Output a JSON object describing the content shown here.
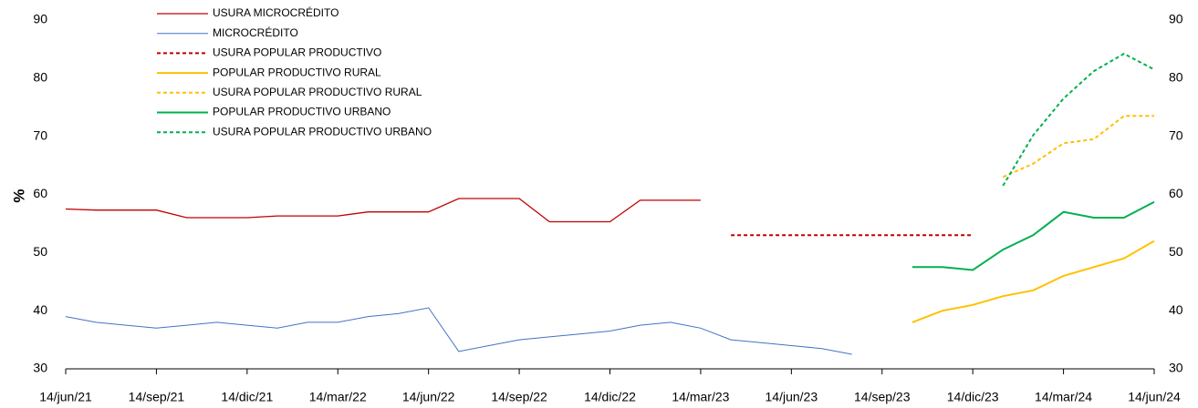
{
  "chart_data": {
    "type": "line",
    "ylabel": "%",
    "ylim": [
      30,
      90
    ],
    "yticks": [
      30,
      40,
      50,
      60,
      70,
      80,
      90
    ],
    "y2lim": [
      30,
      90
    ],
    "y2ticks": [
      30,
      40,
      50,
      60,
      70,
      80,
      90
    ],
    "legend": "top-left",
    "x": [
      "2021-06-14",
      "2021-07-14",
      "2021-08-14",
      "2021-09-14",
      "2021-10-14",
      "2021-11-14",
      "2021-12-14",
      "2022-01-14",
      "2022-02-14",
      "2022-03-14",
      "2022-04-14",
      "2022-05-14",
      "2022-06-14",
      "2022-07-14",
      "2022-08-14",
      "2022-09-14",
      "2022-10-14",
      "2022-11-14",
      "2022-12-14",
      "2023-01-14",
      "2023-02-14",
      "2023-03-14",
      "2023-04-14",
      "2023-05-14",
      "2023-06-14",
      "2023-07-14",
      "2023-08-14",
      "2023-09-14",
      "2023-10-14",
      "2023-11-14",
      "2023-12-14",
      "2024-01-14",
      "2024-02-14",
      "2024-03-14",
      "2024-04-14",
      "2024-05-14",
      "2024-06-14"
    ],
    "xticks": [
      {
        "value": "2021-06-14",
        "label": "14/jun/21"
      },
      {
        "value": "2021-09-14",
        "label": "14/sep/21"
      },
      {
        "value": "2021-12-14",
        "label": "14/dic/21"
      },
      {
        "value": "2022-03-14",
        "label": "14/mar/22"
      },
      {
        "value": "2022-06-14",
        "label": "14/jun/22"
      },
      {
        "value": "2022-09-14",
        "label": "14/sep/22"
      },
      {
        "value": "2022-12-14",
        "label": "14/dic/22"
      },
      {
        "value": "2023-03-14",
        "label": "14/mar/23"
      },
      {
        "value": "2023-06-14",
        "label": "14/jun/23"
      },
      {
        "value": "2023-09-14",
        "label": "14/sep/23"
      },
      {
        "value": "2023-12-14",
        "label": "14/dic/23"
      },
      {
        "value": "2024-03-14",
        "label": "14/mar/24"
      },
      {
        "value": "2024-06-14",
        "label": "14/jun/24"
      }
    ],
    "series": [
      {
        "name": "USURA MICROCRÉDITO",
        "color": "#c00000",
        "dashed": false,
        "width": 1.3,
        "values": [
          57.5,
          57.3,
          57.3,
          57.3,
          56.0,
          56.0,
          56.0,
          56.3,
          56.3,
          56.3,
          57.0,
          57.0,
          57.0,
          59.3,
          59.3,
          59.3,
          55.3,
          55.3,
          55.3,
          59.0,
          59.0,
          59.0,
          null,
          null,
          null,
          null,
          null,
          null,
          null,
          null,
          null,
          null,
          null,
          null,
          null,
          null,
          null
        ]
      },
      {
        "name": "MICROCRÉDITO",
        "color": "#4472c4",
        "dashed": false,
        "width": 1,
        "values": [
          39,
          38,
          37.5,
          37,
          37.5,
          38,
          37.5,
          37,
          38,
          38,
          39,
          39.5,
          40.5,
          33,
          34,
          35,
          35.5,
          36,
          36.5,
          37.5,
          38,
          37,
          35,
          34.5,
          34,
          33.5,
          32.5,
          null,
          null,
          null,
          null,
          null,
          null,
          null,
          null,
          null,
          null
        ]
      },
      {
        "name": "USURA POPULAR PRODUCTIVO",
        "color": "#c00000",
        "dashed": true,
        "width": 2,
        "values": [
          null,
          null,
          null,
          null,
          null,
          null,
          null,
          null,
          null,
          null,
          null,
          null,
          null,
          null,
          null,
          null,
          null,
          null,
          null,
          null,
          null,
          null,
          53,
          53,
          53,
          53,
          53,
          53,
          53,
          53,
          53,
          null,
          null,
          null,
          null,
          null,
          null
        ]
      },
      {
        "name": "POPULAR PRODUCTIVO RURAL",
        "color": "#ffc000",
        "dashed": false,
        "width": 2,
        "values": [
          null,
          null,
          null,
          null,
          null,
          null,
          null,
          null,
          null,
          null,
          null,
          null,
          null,
          null,
          null,
          null,
          null,
          null,
          null,
          null,
          null,
          null,
          null,
          null,
          null,
          null,
          null,
          null,
          38,
          40,
          41,
          42.5,
          43.5,
          46,
          47.5,
          49,
          52
        ]
      },
      {
        "name": "USURA POPULAR PRODUCTIVO RURAL",
        "color": "#ffc000",
        "dashed": true,
        "width": 2,
        "values": [
          null,
          null,
          null,
          null,
          null,
          null,
          null,
          null,
          null,
          null,
          null,
          null,
          null,
          null,
          null,
          null,
          null,
          null,
          null,
          null,
          null,
          null,
          null,
          null,
          null,
          null,
          null,
          null,
          null,
          null,
          null,
          63,
          65.3,
          68.8,
          69.5,
          73.5,
          73.5
        ]
      },
      {
        "name": "POPULAR PRODUCTIVO URBANO",
        "color": "#00b050",
        "dashed": false,
        "width": 2,
        "values": [
          null,
          null,
          null,
          null,
          null,
          null,
          null,
          null,
          null,
          null,
          null,
          null,
          null,
          null,
          null,
          null,
          null,
          null,
          null,
          null,
          null,
          null,
          null,
          null,
          null,
          null,
          null,
          null,
          47.5,
          47.5,
          47,
          50.5,
          53,
          57,
          56,
          56,
          58.7
        ]
      },
      {
        "name": "USURA POPULAR PRODUCTIVO URBANO",
        "color": "#00b050",
        "dashed": true,
        "width": 2,
        "values": [
          null,
          null,
          null,
          null,
          null,
          null,
          null,
          null,
          null,
          null,
          null,
          null,
          null,
          null,
          null,
          null,
          null,
          null,
          null,
          null,
          null,
          null,
          null,
          null,
          null,
          null,
          null,
          null,
          null,
          null,
          null,
          61.5,
          70.2,
          76.5,
          81.2,
          84.2,
          81.5
        ]
      }
    ]
  }
}
